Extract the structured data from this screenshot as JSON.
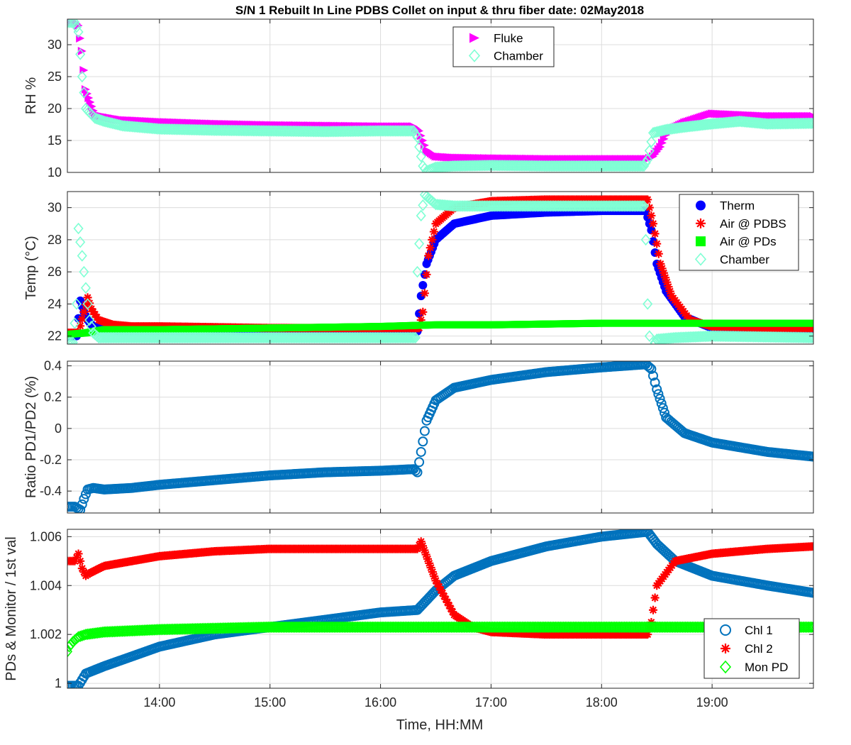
{
  "figure": {
    "title": "S/N 1 Rebuilt In Line PDBS Collet on input & thru fiber date: 02May2018",
    "xlabel": "Time, HH:MM"
  },
  "chart_data": [
    {
      "type": "scatter",
      "ylabel": "RH %",
      "xlim": [
        "13:10",
        "19:55"
      ],
      "ylim": [
        10,
        34
      ],
      "yticks": [
        "10",
        "15",
        "20",
        "25",
        "30"
      ],
      "ytick_values": [
        10,
        15,
        20,
        25,
        30
      ],
      "grid": true,
      "legend_position": "top-center",
      "series": [
        {
          "name": "Fluke",
          "marker": "triangle-right",
          "color": "#ff00ff",
          "x": [
            "13:10",
            "13:14",
            "13:16",
            "13:18",
            "13:20",
            "13:25",
            "13:30",
            "13:40",
            "14:00",
            "14:30",
            "15:00",
            "15:30",
            "16:00",
            "16:18",
            "16:21",
            "16:25",
            "16:30",
            "16:40",
            "17:00",
            "17:30",
            "18:00",
            "18:25",
            "18:28",
            "18:32",
            "18:36",
            "18:45",
            "19:00",
            "19:30",
            "19:55"
          ],
          "y": [
            33.5,
            33.5,
            33,
            29,
            23,
            19,
            18.7,
            18.2,
            17.9,
            17.6,
            17.4,
            17.3,
            17.2,
            17.2,
            16.5,
            13.5,
            12.5,
            12.3,
            12.2,
            12.1,
            12.1,
            12.1,
            12.5,
            14,
            16.5,
            17.8,
            19.2,
            18.8,
            18.8
          ]
        },
        {
          "name": "Chamber",
          "marker": "diamond-open",
          "color": "#7fffd4",
          "x": [
            "13:10",
            "13:14",
            "13:16",
            "13:18",
            "13:20",
            "13:25",
            "13:30",
            "13:40",
            "14:00",
            "14:30",
            "15:00",
            "15:30",
            "16:00",
            "16:18",
            "16:20",
            "16:23",
            "16:25",
            "16:30",
            "16:40",
            "17:00",
            "17:30",
            "18:00",
            "18:23",
            "18:25",
            "18:28",
            "18:35",
            "18:45",
            "19:00",
            "19:15",
            "19:30",
            "19:55"
          ],
          "y": [
            33.5,
            33.5,
            32,
            25,
            20,
            18.5,
            18,
            17.3,
            16.8,
            16.6,
            16.5,
            16.4,
            16.5,
            16.5,
            15.5,
            11,
            10.2,
            10.8,
            11,
            11.1,
            11,
            11,
            11,
            12,
            16.2,
            16.7,
            17.1,
            17.6,
            18,
            17.6,
            17.7
          ]
        }
      ]
    },
    {
      "type": "scatter",
      "ylabel": "Temp (°C)",
      "xlim": [
        "13:10",
        "19:55"
      ],
      "ylim": [
        21.5,
        31
      ],
      "yticks": [
        "22",
        "24",
        "26",
        "28",
        "30"
      ],
      "ytick_values": [
        22,
        24,
        26,
        28,
        30
      ],
      "grid": true,
      "legend_position": "top-right",
      "series": [
        {
          "name": "Therm",
          "marker": "circle-filled",
          "color": "#0000ff",
          "x": [
            "13:10",
            "13:15",
            "13:17",
            "13:19",
            "13:21",
            "13:24",
            "13:30",
            "13:40",
            "14:00",
            "15:00",
            "16:00",
            "16:20",
            "16:22",
            "16:25",
            "16:30",
            "16:40",
            "17:00",
            "17:30",
            "18:00",
            "18:24",
            "18:27",
            "18:30",
            "18:35",
            "18:45",
            "19:00",
            "19:30",
            "19:55"
          ],
          "y": [
            22,
            22,
            24.2,
            23.5,
            23,
            22.6,
            22.4,
            22.3,
            22.3,
            22.3,
            22.3,
            22.3,
            24.5,
            26.5,
            28,
            29,
            29.5,
            29.7,
            29.8,
            29.8,
            28.6,
            26.5,
            24.8,
            23.2,
            22.5,
            22.4,
            22.4
          ]
        },
        {
          "name": "Air @ PDBS",
          "marker": "asterisk",
          "color": "#ff0000",
          "x": [
            "13:10",
            "13:16",
            "13:19",
            "13:21",
            "13:23",
            "13:27",
            "13:35",
            "13:45",
            "14:00",
            "15:00",
            "16:00",
            "16:21",
            "16:23",
            "16:26",
            "16:30",
            "16:40",
            "17:00",
            "17:30",
            "18:00",
            "18:25",
            "18:28",
            "18:32",
            "18:38",
            "18:48",
            "19:00",
            "19:30",
            "19:55"
          ],
          "y": [
            22.2,
            22.2,
            23.5,
            24.4,
            23.7,
            23,
            22.7,
            22.6,
            22.6,
            22.5,
            22.5,
            22.5,
            23.5,
            27,
            29,
            30,
            30.4,
            30.5,
            30.5,
            30.5,
            29,
            26.5,
            24.5,
            23,
            22.6,
            22.5,
            22.5
          ]
        },
        {
          "name": "Air @ PDs",
          "marker": "square-filled",
          "color": "#00ff00",
          "x": [
            "13:10",
            "13:20",
            "13:30",
            "14:00",
            "15:00",
            "16:00",
            "16:30",
            "17:00",
            "18:00",
            "18:30",
            "19:00",
            "19:30",
            "19:55"
          ],
          "y": [
            22.1,
            22.2,
            22.4,
            22.4,
            22.5,
            22.6,
            22.7,
            22.7,
            22.8,
            22.8,
            22.8,
            22.8,
            22.8
          ]
        },
        {
          "name": "Chamber",
          "marker": "diamond-open",
          "color": "#7fffd4",
          "x": [
            "13:10",
            "13:13",
            "13:15",
            "13:16",
            "13:18",
            "13:20",
            "13:22",
            "13:24",
            "13:27",
            "13:35",
            "14:00",
            "15:00",
            "16:00",
            "16:19",
            "16:20",
            "16:22",
            "16:24",
            "16:26",
            "16:30",
            "16:40",
            "17:00",
            "18:00",
            "18:23",
            "18:24",
            "18:25",
            "18:26",
            "18:27",
            "18:30",
            "18:40",
            "19:00",
            "19:55"
          ],
          "y": [
            21.6,
            21.6,
            24,
            28.7,
            27,
            25,
            23,
            22.2,
            21.9,
            21.9,
            21.9,
            21.9,
            21.9,
            21.9,
            26,
            29.5,
            30.8,
            30.6,
            30.2,
            30.1,
            30.1,
            30.1,
            30.1,
            28,
            24,
            22,
            21.2,
            21.8,
            21.9,
            22,
            21.9
          ]
        }
      ]
    },
    {
      "type": "scatter",
      "ylabel": "Ratio PD1/PD2 (%)",
      "xlim": [
        "13:10",
        "19:55"
      ],
      "ylim": [
        -0.54,
        0.43
      ],
      "yticks": [
        "-0.4",
        "-0.2",
        "0",
        "0.2",
        "0.4"
      ],
      "ytick_values": [
        -0.4,
        -0.2,
        0,
        0.2,
        0.4
      ],
      "grid": true,
      "series": [
        {
          "name": "",
          "marker": "circle-open",
          "color": "#0072bd",
          "x": [
            "13:10",
            "13:14",
            "13:17",
            "13:19",
            "13:21",
            "13:24",
            "13:30",
            "13:45",
            "14:00",
            "14:30",
            "15:00",
            "15:30",
            "16:00",
            "16:18",
            "16:20",
            "16:22",
            "16:25",
            "16:30",
            "16:40",
            "17:00",
            "17:30",
            "18:00",
            "18:24",
            "18:27",
            "18:30",
            "18:35",
            "18:45",
            "19:00",
            "19:30",
            "19:55"
          ],
          "y": [
            -0.5,
            -0.5,
            -0.52,
            -0.45,
            -0.39,
            -0.38,
            -0.39,
            -0.38,
            -0.36,
            -0.33,
            -0.3,
            -0.28,
            -0.27,
            -0.26,
            -0.28,
            -0.15,
            0.05,
            0.18,
            0.26,
            0.31,
            0.36,
            0.39,
            0.41,
            0.38,
            0.25,
            0.07,
            -0.03,
            -0.09,
            -0.15,
            -0.18
          ]
        }
      ]
    },
    {
      "type": "scatter",
      "ylabel": "PDs & Monitor / 1st val",
      "xlim": [
        "13:10",
        "19:55"
      ],
      "ylim": [
        0.9998,
        1.0063
      ],
      "yticks": [
        "1",
        "1.002",
        "1.004",
        "1.006"
      ],
      "ytick_values": [
        1,
        1.002,
        1.004,
        1.006
      ],
      "grid": true,
      "legend_position": "bottom-right",
      "series": [
        {
          "name": "Chl 1",
          "marker": "circle-open",
          "color": "#0072bd",
          "x": [
            "13:10",
            "13:14",
            "13:16",
            "13:20",
            "13:30",
            "13:45",
            "14:00",
            "14:30",
            "15:00",
            "15:30",
            "16:00",
            "16:20",
            "16:25",
            "16:30",
            "16:40",
            "17:00",
            "17:30",
            "18:00",
            "18:25",
            "18:30",
            "18:40",
            "19:00",
            "19:30",
            "19:55"
          ],
          "y": [
            0.9999,
            0.9999,
            0.9999,
            1.0004,
            1.0007,
            1.0011,
            1.0015,
            1.002,
            1.0023,
            1.0026,
            1.0029,
            1.003,
            1.0034,
            1.0038,
            1.0044,
            1.005,
            1.0056,
            1.006,
            1.0062,
            1.0057,
            1.005,
            1.0044,
            1.004,
            1.0037
          ]
        },
        {
          "name": "Chl 2",
          "marker": "asterisk",
          "color": "#ff0000",
          "x": [
            "13:10",
            "13:14",
            "13:16",
            "13:18",
            "13:20",
            "13:22",
            "13:30",
            "14:00",
            "14:30",
            "15:00",
            "15:30",
            "16:00",
            "16:20",
            "16:22",
            "16:30",
            "16:40",
            "16:50",
            "17:00",
            "17:30",
            "18:00",
            "18:25",
            "18:27",
            "18:30",
            "18:40",
            "19:00",
            "19:30",
            "19:55"
          ],
          "y": [
            1.005,
            1.005,
            1.0053,
            1.0047,
            1.0044,
            1.0045,
            1.0048,
            1.0052,
            1.0054,
            1.0055,
            1.0055,
            1.0055,
            1.0055,
            1.0058,
            1.0042,
            1.0028,
            1.0023,
            1.0021,
            1.002,
            1.002,
            1.002,
            1.0025,
            1.004,
            1.005,
            1.0053,
            1.0055,
            1.0056
          ]
        },
        {
          "name": "Mon PD",
          "marker": "diamond-open",
          "color": "#00ff00",
          "x": [
            "13:10",
            "13:11",
            "13:13",
            "13:16",
            "13:20",
            "13:30",
            "14:00",
            "15:00",
            "16:00",
            "17:00",
            "18:00",
            "19:00",
            "19:55"
          ],
          "y": [
            1.0013,
            1.0015,
            1.0017,
            1.0019,
            1.002,
            1.0021,
            1.0022,
            1.0023,
            1.0023,
            1.0023,
            1.0023,
            1.0023,
            1.0023
          ]
        }
      ]
    }
  ],
  "shared_xticks": [
    "14:00",
    "15:00",
    "16:00",
    "17:00",
    "18:00",
    "19:00"
  ]
}
